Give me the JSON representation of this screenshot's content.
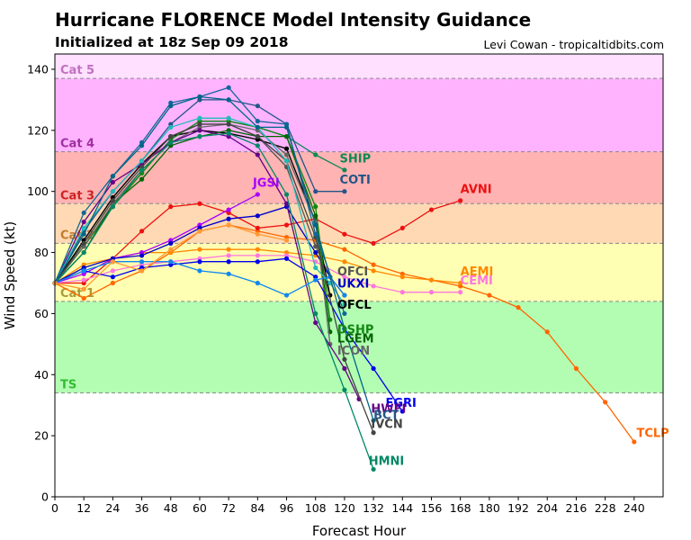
{
  "header": {
    "title": "Hurricane FLORENCE Model Intensity Guidance",
    "subtitle": "Initialized at 18z Sep 09 2018",
    "credit": "Levi Cowan - tropicaltidbits.com"
  },
  "chart_data": {
    "type": "line",
    "title": "Hurricane FLORENCE Model Intensity Guidance",
    "subtitle": "Initialized at 18z Sep 09 2018",
    "xlabel": "Forecast Hour",
    "ylabel": "Wind Speed (kt)",
    "xlim": [
      0,
      252
    ],
    "ylim": [
      0,
      145
    ],
    "xticks": [
      0,
      12,
      24,
      36,
      48,
      60,
      72,
      84,
      96,
      108,
      120,
      132,
      144,
      156,
      168,
      180,
      192,
      204,
      216,
      228,
      240
    ],
    "yticks": [
      0,
      20,
      40,
      60,
      80,
      100,
      120,
      140
    ],
    "categories": [
      {
        "name": "TS",
        "min": 34,
        "max": 64,
        "color": "#b3fdb3",
        "text_color": "#33bb33"
      },
      {
        "name": "Cat 1",
        "min": 64,
        "max": 83,
        "color": "#ffffb3",
        "text_color": "#a89a3a"
      },
      {
        "name": "Cat 2",
        "min": 83,
        "max": 96,
        "color": "#ffd9b3",
        "text_color": "#c07a2a"
      },
      {
        "name": "Cat 3",
        "min": 96,
        "max": 113,
        "color": "#ffb3b3",
        "text_color": "#cc2222"
      },
      {
        "name": "Cat 4",
        "min": 113,
        "max": 137,
        "color": "#ffb3ff",
        "text_color": "#a030a0"
      },
      {
        "name": "Cat 5",
        "min": 137,
        "max": 145,
        "color": "#ffe0ff",
        "text_color": "#c070c0"
      }
    ],
    "series": [
      {
        "name": "TCLP",
        "color": "#ff6600",
        "x": [
          0,
          12,
          24,
          36,
          48,
          60,
          72,
          84,
          96,
          108,
          120,
          132,
          144,
          156,
          168,
          180,
          192,
          204,
          216,
          228,
          240
        ],
        "y": [
          70,
          65,
          70,
          74,
          80,
          87,
          89,
          87,
          85,
          84,
          81,
          76,
          73,
          71,
          69,
          66,
          62,
          54,
          42,
          31,
          18
        ]
      },
      {
        "name": "AVNI",
        "color": "#ee1111",
        "x": [
          0,
          12,
          24,
          36,
          48,
          60,
          72,
          84,
          96,
          108,
          120,
          132,
          144,
          156,
          168
        ],
        "y": [
          70,
          70,
          78,
          87,
          95,
          96,
          93,
          88,
          89,
          91,
          86,
          83,
          88,
          94,
          97
        ]
      },
      {
        "name": "AEMI",
        "color": "#ff8800",
        "x": [
          0,
          12,
          24,
          36,
          48,
          60,
          72,
          84,
          96,
          108,
          120,
          132,
          144,
          156,
          168
        ],
        "y": [
          70,
          76,
          78,
          80,
          80,
          81,
          81,
          81,
          80,
          79,
          77,
          74,
          72,
          71,
          70
        ]
      },
      {
        "name": "CEMI",
        "color": "#ff77dd",
        "x": [
          0,
          12,
          24,
          36,
          48,
          60,
          72,
          84,
          96,
          108,
          120,
          132,
          144,
          156,
          168
        ],
        "y": [
          70,
          71,
          74,
          76,
          77,
          78,
          79,
          79,
          79,
          77,
          72,
          69,
          67,
          67,
          67
        ]
      },
      {
        "name": "SHIP",
        "color": "#118855",
        "x": [
          0,
          12,
          24,
          36,
          48,
          60,
          72,
          84,
          96,
          108,
          120
        ],
        "y": [
          70,
          82,
          95,
          106,
          117,
          123,
          123,
          121,
          118,
          112,
          107
        ]
      },
      {
        "name": "COTI",
        "color": "#225588",
        "x": [
          0,
          12,
          24,
          36,
          48,
          60,
          72,
          84,
          96,
          108,
          120
        ],
        "y": [
          70,
          87,
          100,
          110,
          122,
          130,
          130,
          128,
          122,
          100,
          100
        ]
      },
      {
        "name": "JGSI",
        "color": "#aa00ff",
        "x": [
          0,
          12,
          24,
          36,
          48,
          60,
          72,
          84
        ],
        "y": [
          70,
          73,
          78,
          80,
          84,
          89,
          94,
          99
        ]
      },
      {
        "name": "OFCI",
        "color": "#555555",
        "x": [
          0,
          12,
          24,
          36,
          48,
          60,
          72,
          84,
          96,
          108,
          114
        ],
        "y": [
          70,
          84,
          98,
          109,
          118,
          122,
          122,
          118,
          108,
          82,
          72
        ]
      },
      {
        "name": "UKXI",
        "color": "#0000cc",
        "x": [
          0,
          12,
          24,
          36,
          48,
          60,
          72,
          84,
          96,
          108,
          114,
          120
        ],
        "y": [
          70,
          75,
          78,
          79,
          83,
          88,
          91,
          92,
          95,
          80,
          72,
          66
        ]
      },
      {
        "name": "OFCL",
        "color": "#000000",
        "x": [
          0,
          12,
          24,
          36,
          48,
          60,
          72,
          84,
          96,
          108,
          114
        ],
        "y": [
          70,
          84,
          98,
          109,
          118,
          120,
          119,
          117,
          114,
          90,
          66
        ]
      },
      {
        "name": "DSHP",
        "color": "#118811",
        "x": [
          0,
          12,
          24,
          36,
          48,
          60,
          72,
          84,
          96,
          108,
          114
        ],
        "y": [
          70,
          82,
          95,
          106,
          117,
          123,
          123,
          121,
          118,
          95,
          58
        ]
      },
      {
        "name": "LGEM",
        "color": "#006600",
        "x": [
          0,
          12,
          24,
          36,
          48,
          60,
          72,
          84,
          96,
          108,
          114
        ],
        "y": [
          70,
          80,
          96,
          104,
          115,
          118,
          120,
          118,
          118,
          92,
          54
        ]
      },
      {
        "name": "ICON",
        "color": "#666666",
        "x": [
          0,
          12,
          24,
          36,
          48,
          60,
          72,
          84,
          96,
          108,
          114
        ],
        "y": [
          70,
          82,
          96,
          107,
          116,
          121,
          122,
          120,
          112,
          90,
          50
        ]
      },
      {
        "name": "HWFI",
        "color": "#660088",
        "x": [
          0,
          12,
          24,
          36,
          48,
          60,
          72,
          84,
          96,
          108,
          120,
          126
        ],
        "y": [
          70,
          90,
          103,
          109,
          116,
          120,
          118,
          112,
          96,
          57,
          42,
          32
        ]
      },
      {
        "name": "EGRI",
        "color": "#0000ee",
        "x": [
          0,
          12,
          24,
          36,
          48,
          60,
          72,
          84,
          96,
          108,
          120,
          132,
          144
        ],
        "y": [
          70,
          74,
          72,
          75,
          76,
          77,
          77,
          77,
          78,
          72,
          55,
          42,
          28
        ]
      },
      {
        "name": "IVCN",
        "color": "#444444",
        "x": [
          0,
          12,
          24,
          36,
          48,
          60,
          72,
          84,
          96,
          108,
          120,
          132
        ],
        "y": [
          70,
          83,
          97,
          108,
          118,
          122,
          122,
          118,
          110,
          85,
          45,
          21
        ]
      },
      {
        "name": "HMNI",
        "color": "#008866",
        "x": [
          0,
          12,
          24,
          36,
          48,
          60,
          72,
          84,
          96,
          108,
          120,
          132
        ],
        "y": [
          70,
          80,
          95,
          107,
          116,
          118,
          119,
          115,
          99,
          60,
          35,
          9
        ]
      },
      {
        "name": "",
        "color": "#1188ee",
        "x": [
          0,
          12,
          24,
          36,
          48,
          60,
          72,
          84,
          96,
          108,
          114,
          120
        ],
        "y": [
          70,
          74,
          77,
          77,
          77,
          74,
          73,
          70,
          66,
          71,
          72,
          66
        ]
      },
      {
        "name": "",
        "color": "#22bbbb",
        "x": [
          0,
          12,
          24,
          36,
          48,
          60,
          72,
          84,
          96,
          108,
          114,
          120
        ],
        "y": [
          70,
          88,
          100,
          110,
          121,
          124,
          124,
          121,
          110,
          75,
          70,
          63
        ]
      },
      {
        "name": "",
        "color": "#116699",
        "x": [
          0,
          12,
          24,
          36,
          48,
          60,
          72,
          84,
          96,
          108,
          120
        ],
        "y": [
          70,
          93,
          105,
          116,
          129,
          131,
          134,
          123,
          122,
          86,
          60
        ]
      },
      {
        "name": "",
        "color": "#006688",
        "x": [
          0,
          12,
          24,
          36,
          48,
          60,
          72,
          84,
          96,
          108,
          120,
          132
        ],
        "y": [
          70,
          86,
          105,
          115,
          128,
          131,
          130,
          121,
          121,
          89,
          55,
          25
        ]
      },
      {
        "name": "",
        "color": "#ff9933",
        "x": [
          0,
          12,
          24,
          36,
          48,
          60,
          72,
          84,
          96
        ],
        "y": [
          70,
          68,
          77,
          74,
          81,
          87,
          89,
          86,
          84
        ]
      }
    ],
    "labels": [
      {
        "text": "AVNI",
        "x": 168,
        "y": 101,
        "color": "#ee1111"
      },
      {
        "text": "SHIP",
        "x": 118,
        "y": 111,
        "color": "#118855"
      },
      {
        "text": "COTI",
        "x": 118,
        "y": 104,
        "color": "#225588"
      },
      {
        "text": "JGSI",
        "x": 82,
        "y": 103,
        "color": "#aa00ff"
      },
      {
        "text": "AEMI",
        "x": 168,
        "y": 74,
        "color": "#ff8800"
      },
      {
        "text": "CEMI",
        "x": 168,
        "y": 71,
        "color": "#ff77dd"
      },
      {
        "text": "OFCI",
        "x": 117,
        "y": 74,
        "color": "#555555"
      },
      {
        "text": "UKXI",
        "x": 117,
        "y": 70,
        "color": "#0000cc"
      },
      {
        "text": "OFCL",
        "x": 117,
        "y": 63,
        "color": "#000000"
      },
      {
        "text": "DSHP",
        "x": 117,
        "y": 55,
        "color": "#118811"
      },
      {
        "text": "LGEM",
        "x": 117,
        "y": 52,
        "color": "#006600"
      },
      {
        "text": "ICON",
        "x": 117,
        "y": 48,
        "color": "#666666"
      },
      {
        "text": "EGRI",
        "x": 137,
        "y": 31,
        "color": "#0000ee"
      },
      {
        "text": "HWFI",
        "x": 131,
        "y": 29,
        "color": "#660088"
      },
      {
        "text": "BCT",
        "x": 132,
        "y": 27,
        "color": "#225588"
      },
      {
        "text": "IVCN",
        "x": 131,
        "y": 24,
        "color": "#444444"
      },
      {
        "text": "HMNI",
        "x": 130,
        "y": 12,
        "color": "#008866"
      },
      {
        "text": "TCLP",
        "x": 241,
        "y": 21,
        "color": "#ff6600"
      }
    ]
  }
}
